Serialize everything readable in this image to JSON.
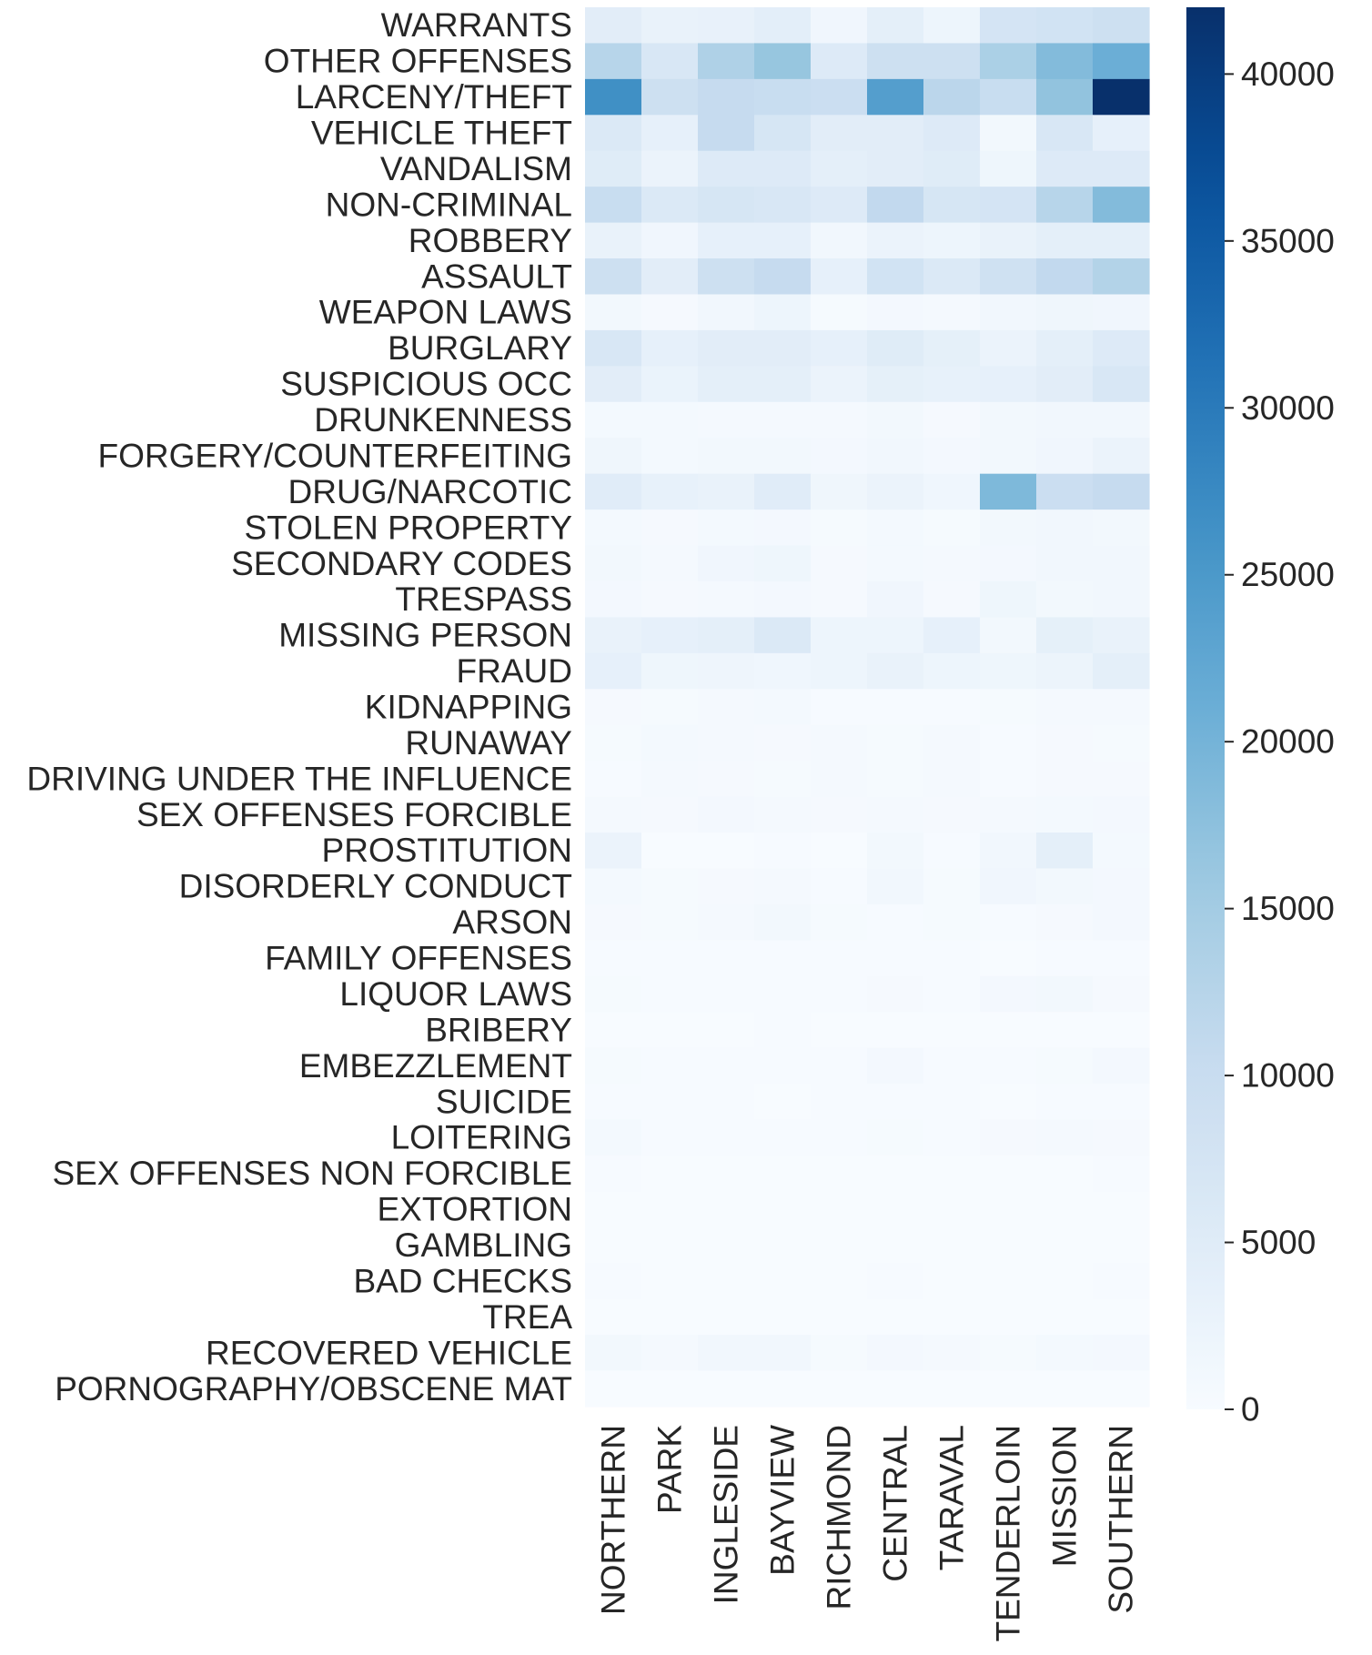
{
  "chart_data": {
    "type": "heatmap",
    "title": "",
    "xlabel": "",
    "ylabel": "",
    "colormap": "Blues",
    "colors": {
      "low": "#f7fbff",
      "high": "#08306b",
      "text": "#262626"
    },
    "value_range": [
      0,
      42000
    ],
    "colorbar_ticks": [
      0,
      5000,
      10000,
      15000,
      20000,
      25000,
      30000,
      35000,
      40000
    ],
    "colorbar_tick_labels": [
      "0",
      "5000",
      "10000",
      "15000",
      "20000",
      "25000",
      "30000",
      "35000",
      "40000"
    ],
    "x_categories": [
      "NORTHERN",
      "PARK",
      "INGLESIDE",
      "BAYVIEW",
      "RICHMOND",
      "CENTRAL",
      "TARAVAL",
      "TENDERLOIN",
      "MISSION",
      "SOUTHERN"
    ],
    "y_categories": [
      "WARRANTS",
      "OTHER OFFENSES",
      "LARCENY/THEFT",
      "VEHICLE THEFT",
      "VANDALISM",
      "NON-CRIMINAL",
      "ROBBERY",
      "ASSAULT",
      "WEAPON LAWS",
      "BURGLARY",
      "SUSPICIOUS OCC",
      "DRUNKENNESS",
      "FORGERY/COUNTERFEITING",
      "DRUG/NARCOTIC",
      "STOLEN PROPERTY",
      "SECONDARY CODES",
      "TRESPASS",
      "MISSING PERSON",
      "FRAUD",
      "KIDNAPPING",
      "RUNAWAY",
      "DRIVING UNDER THE INFLUENCE",
      "SEX OFFENSES FORCIBLE",
      "PROSTITUTION",
      "DISORDERLY CONDUCT",
      "ARSON",
      "FAMILY OFFENSES",
      "LIQUOR LAWS",
      "BRIBERY",
      "EMBEZZLEMENT",
      "SUICIDE",
      "LOITERING",
      "SEX OFFENSES NON FORCIBLE",
      "EXTORTION",
      "GAMBLING",
      "BAD CHECKS",
      "TREA",
      "RECOVERED VEHICLE",
      "PORNOGRAPHY/OBSCENE MAT"
    ],
    "values": [
      [
        4500,
        3000,
        3200,
        4200,
        1500,
        4000,
        2000,
        7500,
        8000,
        9000
      ],
      [
        12500,
        6500,
        13500,
        16500,
        5500,
        9000,
        9000,
        14000,
        18500,
        21000
      ],
      [
        26500,
        9000,
        10500,
        10000,
        9500,
        24000,
        12000,
        10000,
        17000,
        42000
      ],
      [
        6000,
        3500,
        10500,
        7000,
        4500,
        4500,
        5500,
        1000,
        6500,
        3500
      ],
      [
        5000,
        2500,
        5500,
        5500,
        4000,
        4500,
        5000,
        1800,
        5500,
        5500
      ],
      [
        10000,
        6000,
        7000,
        6500,
        5500,
        11000,
        7000,
        7500,
        12500,
        18500
      ],
      [
        3000,
        1500,
        3500,
        3500,
        1200,
        2500,
        2000,
        3000,
        4000,
        4000
      ],
      [
        9000,
        4500,
        9000,
        10500,
        3500,
        8000,
        6000,
        8500,
        11000,
        13000
      ],
      [
        1000,
        500,
        1200,
        2000,
        400,
        900,
        700,
        1200,
        1700,
        1500
      ],
      [
        6500,
        3500,
        4500,
        4500,
        3500,
        5000,
        3700,
        2500,
        4000,
        5500
      ],
      [
        4500,
        2700,
        4000,
        4000,
        2500,
        3700,
        3300,
        3500,
        4500,
        6500
      ],
      [
        800,
        800,
        600,
        700,
        600,
        1000,
        500,
        1000,
        1300,
        1200
      ],
      [
        1700,
        800,
        1000,
        1000,
        900,
        1300,
        900,
        1000,
        1500,
        2500
      ],
      [
        4800,
        3300,
        3000,
        4800,
        1700,
        2500,
        1600,
        19000,
        9500,
        10500
      ],
      [
        800,
        500,
        800,
        900,
        400,
        800,
        400,
        1000,
        1200,
        1000
      ],
      [
        1000,
        700,
        1500,
        1800,
        500,
        800,
        700,
        900,
        1200,
        1200
      ],
      [
        900,
        500,
        700,
        900,
        500,
        1500,
        500,
        1800,
        1000,
        1200
      ],
      [
        3000,
        3600,
        4000,
        5800,
        2000,
        2000,
        3500,
        1000,
        3700,
        3000
      ],
      [
        3500,
        1800,
        1900,
        1600,
        2000,
        3000,
        2000,
        1800,
        2300,
        4000
      ],
      [
        500,
        400,
        600,
        800,
        200,
        300,
        300,
        400,
        700,
        600
      ],
      [
        400,
        800,
        700,
        500,
        600,
        400,
        700,
        300,
        500,
        400
      ],
      [
        300,
        600,
        500,
        400,
        700,
        400,
        600,
        200,
        500,
        500
      ],
      [
        700,
        500,
        900,
        600,
        500,
        600,
        500,
        600,
        800,
        900
      ],
      [
        2500,
        100,
        100,
        200,
        100,
        1000,
        200,
        1200,
        4000,
        800
      ],
      [
        800,
        400,
        500,
        600,
        300,
        1300,
        400,
        1500,
        1100,
        900
      ],
      [
        500,
        400,
        700,
        1000,
        400,
        300,
        400,
        300,
        500,
        900
      ],
      [
        200,
        300,
        300,
        300,
        300,
        200,
        300,
        100,
        300,
        200
      ],
      [
        400,
        200,
        300,
        200,
        300,
        500,
        200,
        900,
        1000,
        500
      ],
      [
        100,
        100,
        100,
        200,
        100,
        100,
        100,
        100,
        100,
        100
      ],
      [
        400,
        300,
        300,
        200,
        300,
        900,
        300,
        300,
        400,
        900
      ],
      [
        200,
        200,
        200,
        100,
        200,
        200,
        200,
        100,
        200,
        200
      ],
      [
        800,
        200,
        200,
        200,
        200,
        400,
        200,
        500,
        600,
        500
      ],
      [
        200,
        100,
        100,
        100,
        100,
        100,
        100,
        100,
        100,
        200
      ],
      [
        100,
        100,
        100,
        100,
        100,
        100,
        100,
        100,
        100,
        100
      ],
      [
        100,
        100,
        100,
        100,
        100,
        100,
        100,
        100,
        100,
        100
      ],
      [
        200,
        100,
        100,
        100,
        100,
        200,
        100,
        100,
        100,
        200
      ],
      [
        50,
        50,
        50,
        50,
        50,
        50,
        50,
        50,
        50,
        50
      ],
      [
        1000,
        600,
        1200,
        1200,
        400,
        900,
        600,
        400,
        800,
        900
      ],
      [
        50,
        50,
        50,
        50,
        50,
        50,
        50,
        50,
        50,
        50
      ]
    ]
  }
}
